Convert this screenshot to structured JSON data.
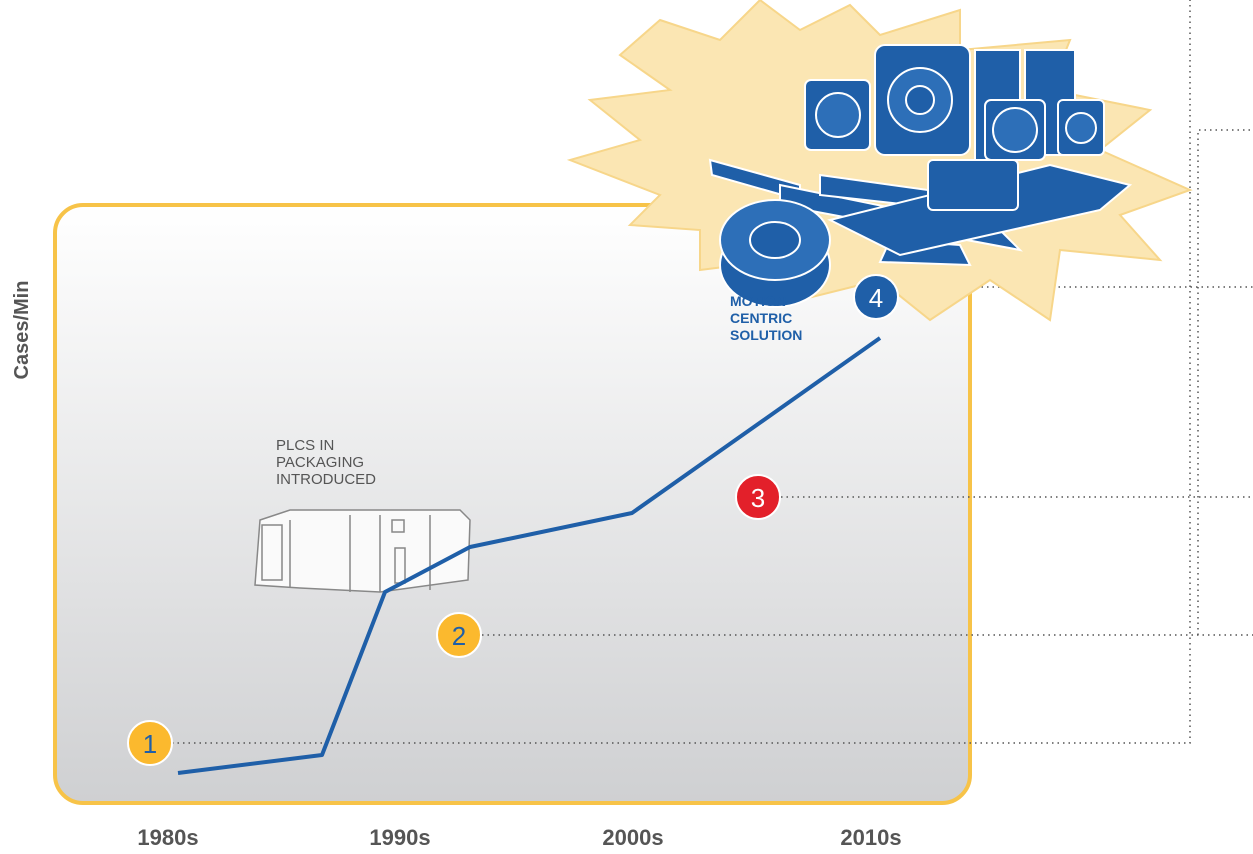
{
  "axis_label": "Cases/Min",
  "eras": [
    "1980s",
    "1990s",
    "2000s",
    "2010s"
  ],
  "annotations": [
    {
      "lines": [
        "PLCS IN",
        "PACKAGING",
        "INTRODUCED"
      ]
    },
    {
      "lines": [
        "MOTION-",
        "CENTRIC",
        "SOLUTION"
      ]
    }
  ],
  "markers": [
    "1",
    "2",
    "3",
    "4"
  ]
}
